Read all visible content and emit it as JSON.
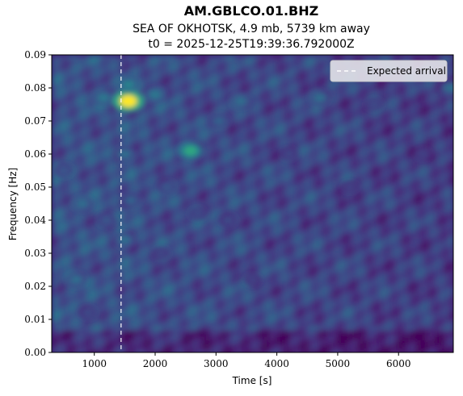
{
  "chart_data": {
    "type": "heatmap",
    "title": "AM.GBLCO.01.BHZ",
    "subtitle": "SEA OF OKHOTSK, 4.9 mb, 5739 km away",
    "subtitle2": "t0 = 2025-12-25T19:39:36.792000Z",
    "xlabel": "Time [s]",
    "ylabel": "Frequency [Hz]",
    "xlim": [
      300,
      6900
    ],
    "ylim": [
      0.0,
      0.09
    ],
    "xticks": [
      1000,
      2000,
      3000,
      4000,
      5000,
      6000
    ],
    "xtick_labels": [
      "1000",
      "2000",
      "3000",
      "4000",
      "5000",
      "6000"
    ],
    "yticks": [
      0.0,
      0.01,
      0.02,
      0.03,
      0.04,
      0.05,
      0.06,
      0.07,
      0.08,
      0.09
    ],
    "ytick_labels": [
      "0.00",
      "0.01",
      "0.02",
      "0.03",
      "0.04",
      "0.05",
      "0.06",
      "0.07",
      "0.08",
      "0.09"
    ],
    "colormap": "viridis",
    "expected_arrival": 1440,
    "legend": {
      "label": "Expected arrival",
      "placement": "top-right"
    },
    "hotspots": [
      {
        "time": 1560,
        "freq": 0.076,
        "level": 1.0
      },
      {
        "time": 2580,
        "freq": 0.061,
        "level": 0.7
      },
      {
        "time": 1560,
        "freq": 0.081,
        "level": 0.55
      },
      {
        "time": 2000,
        "freq": 0.078,
        "level": 0.5
      },
      {
        "time": 1150,
        "freq": 0.077,
        "level": 0.5
      },
      {
        "time": 3400,
        "freq": 0.076,
        "level": 0.45
      },
      {
        "time": 4700,
        "freq": 0.077,
        "level": 0.45
      },
      {
        "time": 6850,
        "freq": 0.08,
        "level": 0.45
      },
      {
        "time": 3050,
        "freq": 0.07,
        "level": 0.4
      },
      {
        "time": 700,
        "freq": 0.022,
        "level": 0.45
      },
      {
        "time": 800,
        "freq": 0.045,
        "level": 0.45
      },
      {
        "time": 1500,
        "freq": 0.06,
        "level": 0.45
      },
      {
        "time": 1500,
        "freq": 0.034,
        "level": 0.45
      },
      {
        "time": 1600,
        "freq": 0.046,
        "level": 0.4
      },
      {
        "time": 500,
        "freq": 0.055,
        "level": 0.35
      },
      {
        "time": 1200,
        "freq": 0.04,
        "level": 0.35
      },
      {
        "time": 2200,
        "freq": 0.05,
        "level": 0.35
      },
      {
        "time": 2700,
        "freq": 0.042,
        "level": 0.3
      },
      {
        "time": 3200,
        "freq": 0.04,
        "level": 0.3
      },
      {
        "time": 5600,
        "freq": 0.075,
        "level": 0.3
      },
      {
        "time": 4200,
        "freq": 0.06,
        "level": 0.28
      },
      {
        "time": 900,
        "freq": 0.012,
        "level": 0.3
      },
      {
        "time": 2100,
        "freq": 0.03,
        "level": 0.28
      },
      {
        "time": 3600,
        "freq": 0.022,
        "level": 0.25
      },
      {
        "time": 5200,
        "freq": 0.05,
        "level": 0.25
      },
      {
        "time": 6400,
        "freq": 0.06,
        "level": 0.25
      }
    ]
  }
}
